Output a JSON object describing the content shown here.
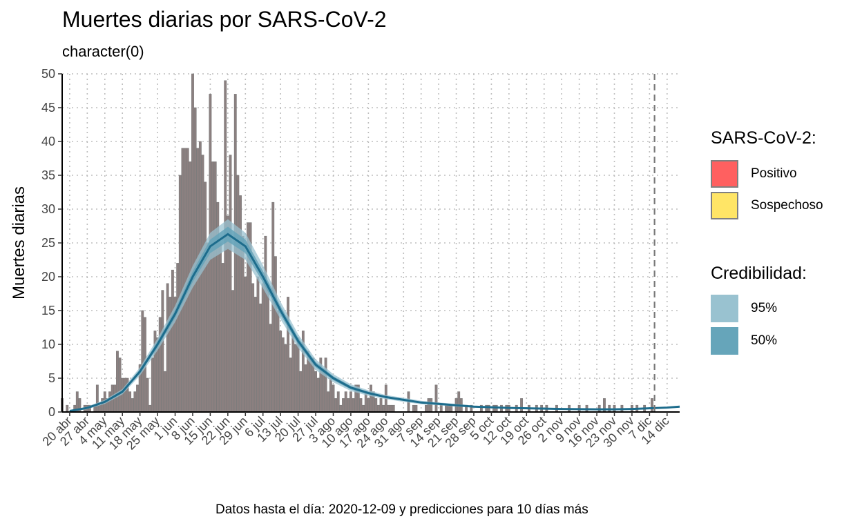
{
  "title": "Muertes diarias por SARS-CoV-2",
  "subtitle": "character(0)",
  "caption": "Datos hasta el día: 2020-12-09 y predicciones para 10 días más",
  "legend": {
    "status_title": "SARS-CoV-2:",
    "status_items": [
      {
        "label": "Positivo",
        "color": "#FF6060"
      },
      {
        "label": "Sospechoso",
        "color": "#FFE566"
      }
    ],
    "cred_title": "Credibilidad:",
    "cred_items": [
      {
        "label": "95%",
        "color": "#99C2D0"
      },
      {
        "label": "50%",
        "color": "#66A5BA"
      }
    ]
  },
  "chart_data": {
    "type": "bar",
    "title": "Muertes diarias por SARS-CoV-2",
    "subtitle": "character(0)",
    "ylabel": "Muertes diarias",
    "xlabel": "",
    "ylim": [
      0,
      50
    ],
    "xlim": [
      "2020-04-17",
      "2020-12-19"
    ],
    "grid": true,
    "legend_position": "right",
    "bar_color": "#8C8080",
    "model_line_color": "#1D6C8C",
    "yticks": [
      0,
      5,
      10,
      15,
      20,
      25,
      30,
      35,
      40,
      45,
      50
    ],
    "xticks": [
      {
        "date": "2020-04-20",
        "label": "20 abr"
      },
      {
        "date": "2020-04-27",
        "label": "27 abr"
      },
      {
        "date": "2020-05-04",
        "label": "4 may"
      },
      {
        "date": "2020-05-11",
        "label": "11 may"
      },
      {
        "date": "2020-05-18",
        "label": "18 may"
      },
      {
        "date": "2020-05-25",
        "label": "25 may"
      },
      {
        "date": "2020-06-01",
        "label": "1 jun"
      },
      {
        "date": "2020-06-08",
        "label": "8 jun"
      },
      {
        "date": "2020-06-15",
        "label": "15 jun"
      },
      {
        "date": "2020-06-22",
        "label": "22 jun"
      },
      {
        "date": "2020-06-29",
        "label": "29 jun"
      },
      {
        "date": "2020-07-06",
        "label": "6 jul"
      },
      {
        "date": "2020-07-13",
        "label": "13 jul"
      },
      {
        "date": "2020-07-20",
        "label": "20 jul"
      },
      {
        "date": "2020-07-27",
        "label": "27 jul"
      },
      {
        "date": "2020-08-03",
        "label": "3 ago"
      },
      {
        "date": "2020-08-10",
        "label": "10 ago"
      },
      {
        "date": "2020-08-17",
        "label": "17 ago"
      },
      {
        "date": "2020-08-24",
        "label": "24 ago"
      },
      {
        "date": "2020-08-31",
        "label": "31 ago"
      },
      {
        "date": "2020-09-07",
        "label": "7 sep"
      },
      {
        "date": "2020-09-14",
        "label": "14 sep"
      },
      {
        "date": "2020-09-21",
        "label": "21 sep"
      },
      {
        "date": "2020-09-28",
        "label": "28 sep"
      },
      {
        "date": "2020-10-05",
        "label": "5 oct"
      },
      {
        "date": "2020-10-12",
        "label": "12 oct"
      },
      {
        "date": "2020-10-19",
        "label": "19 oct"
      },
      {
        "date": "2020-10-26",
        "label": "26 oct"
      },
      {
        "date": "2020-11-02",
        "label": "2 nov"
      },
      {
        "date": "2020-11-09",
        "label": "9 nov"
      },
      {
        "date": "2020-11-16",
        "label": "16 nov"
      },
      {
        "date": "2020-11-23",
        "label": "23 nov"
      },
      {
        "date": "2020-11-30",
        "label": "30 nov"
      },
      {
        "date": "2020-12-07",
        "label": "7 dic"
      },
      {
        "date": "2020-12-14",
        "label": "14 dic"
      }
    ],
    "cutoff_date": "2020-12-09",
    "daily_deaths": [
      [
        "2020-04-17",
        2
      ],
      [
        "2020-04-19",
        1
      ],
      [
        "2020-04-22",
        1
      ],
      [
        "2020-04-23",
        3
      ],
      [
        "2020-04-24",
        2
      ],
      [
        "2020-04-26",
        1
      ],
      [
        "2020-04-27",
        1
      ],
      [
        "2020-04-28",
        1
      ],
      [
        "2020-04-30",
        1
      ],
      [
        "2020-05-01",
        4
      ],
      [
        "2020-05-02",
        1
      ],
      [
        "2020-05-03",
        2
      ],
      [
        "2020-05-04",
        3
      ],
      [
        "2020-05-05",
        2
      ],
      [
        "2020-05-06",
        3
      ],
      [
        "2020-05-07",
        4
      ],
      [
        "2020-05-08",
        4
      ],
      [
        "2020-05-09",
        9
      ],
      [
        "2020-05-10",
        8
      ],
      [
        "2020-05-11",
        5
      ],
      [
        "2020-05-12",
        5
      ],
      [
        "2020-05-13",
        5
      ],
      [
        "2020-05-14",
        3
      ],
      [
        "2020-05-15",
        2
      ],
      [
        "2020-05-16",
        3
      ],
      [
        "2020-05-17",
        4
      ],
      [
        "2020-05-18",
        7
      ],
      [
        "2020-05-19",
        15
      ],
      [
        "2020-05-20",
        14
      ],
      [
        "2020-05-21",
        5
      ],
      [
        "2020-05-22",
        1
      ],
      [
        "2020-05-23",
        8
      ],
      [
        "2020-05-24",
        12
      ],
      [
        "2020-05-25",
        11
      ],
      [
        "2020-05-26",
        14
      ],
      [
        "2020-05-27",
        18
      ],
      [
        "2020-05-28",
        6
      ],
      [
        "2020-05-29",
        19
      ],
      [
        "2020-05-30",
        17
      ],
      [
        "2020-05-31",
        21
      ],
      [
        "2020-06-01",
        17
      ],
      [
        "2020-06-02",
        22
      ],
      [
        "2020-06-03",
        35
      ],
      [
        "2020-06-04",
        39
      ],
      [
        "2020-06-05",
        39
      ],
      [
        "2020-06-06",
        39
      ],
      [
        "2020-06-07",
        37
      ],
      [
        "2020-06-08",
        50
      ],
      [
        "2020-06-09",
        45
      ],
      [
        "2020-06-10",
        39
      ],
      [
        "2020-06-11",
        40
      ],
      [
        "2020-06-12",
        38
      ],
      [
        "2020-06-13",
        34
      ],
      [
        "2020-06-14",
        25
      ],
      [
        "2020-06-15",
        47
      ],
      [
        "2020-06-16",
        37
      ],
      [
        "2020-06-17",
        37
      ],
      [
        "2020-06-18",
        31
      ],
      [
        "2020-06-19",
        25
      ],
      [
        "2020-06-20",
        22
      ],
      [
        "2020-06-21",
        49
      ],
      [
        "2020-06-22",
        29
      ],
      [
        "2020-06-23",
        38
      ],
      [
        "2020-06-24",
        18
      ],
      [
        "2020-06-25",
        47
      ],
      [
        "2020-06-26",
        35
      ],
      [
        "2020-06-27",
        32
      ],
      [
        "2020-06-28",
        26
      ],
      [
        "2020-06-29",
        20
      ],
      [
        "2020-06-30",
        28
      ],
      [
        "2020-07-01",
        28
      ],
      [
        "2020-07-02",
        19
      ],
      [
        "2020-07-03",
        17
      ],
      [
        "2020-07-04",
        20
      ],
      [
        "2020-07-05",
        16
      ],
      [
        "2020-07-06",
        19
      ],
      [
        "2020-07-07",
        26
      ],
      [
        "2020-07-08",
        19
      ],
      [
        "2020-07-09",
        13
      ],
      [
        "2020-07-10",
        31
      ],
      [
        "2020-07-11",
        23
      ],
      [
        "2020-07-12",
        15
      ],
      [
        "2020-07-13",
        12
      ],
      [
        "2020-07-14",
        11
      ],
      [
        "2020-07-15",
        10
      ],
      [
        "2020-07-16",
        17
      ],
      [
        "2020-07-17",
        8
      ],
      [
        "2020-07-18",
        12
      ],
      [
        "2020-07-19",
        10
      ],
      [
        "2020-07-20",
        11
      ],
      [
        "2020-07-21",
        6
      ],
      [
        "2020-07-22",
        12
      ],
      [
        "2020-07-23",
        7
      ],
      [
        "2020-07-24",
        9
      ],
      [
        "2020-07-25",
        8
      ],
      [
        "2020-07-26",
        8
      ],
      [
        "2020-07-27",
        6
      ],
      [
        "2020-07-28",
        5
      ],
      [
        "2020-07-29",
        8
      ],
      [
        "2020-07-30",
        6
      ],
      [
        "2020-07-31",
        8
      ],
      [
        "2020-08-01",
        3
      ],
      [
        "2020-08-02",
        5
      ],
      [
        "2020-08-03",
        4
      ],
      [
        "2020-08-04",
        2
      ],
      [
        "2020-08-05",
        3
      ],
      [
        "2020-08-06",
        1
      ],
      [
        "2020-08-07",
        2
      ],
      [
        "2020-08-08",
        3
      ],
      [
        "2020-08-09",
        2
      ],
      [
        "2020-08-10",
        3
      ],
      [
        "2020-08-11",
        2
      ],
      [
        "2020-08-12",
        4
      ],
      [
        "2020-08-13",
        4
      ],
      [
        "2020-08-14",
        2
      ],
      [
        "2020-08-15",
        1
      ],
      [
        "2020-08-16",
        3
      ],
      [
        "2020-08-17",
        2
      ],
      [
        "2020-08-18",
        4
      ],
      [
        "2020-08-19",
        3
      ],
      [
        "2020-08-20",
        2
      ],
      [
        "2020-08-21",
        1
      ],
      [
        "2020-08-22",
        2
      ],
      [
        "2020-08-23",
        1
      ],
      [
        "2020-08-24",
        4
      ],
      [
        "2020-08-25",
        1
      ],
      [
        "2020-08-26",
        1
      ],
      [
        "2020-08-27",
        1
      ],
      [
        "2020-09-02",
        3
      ],
      [
        "2020-09-04",
        1
      ],
      [
        "2020-09-05",
        1
      ],
      [
        "2020-09-09",
        1
      ],
      [
        "2020-09-10",
        2
      ],
      [
        "2020-09-11",
        2
      ],
      [
        "2020-09-13",
        4
      ],
      [
        "2020-09-15",
        1
      ],
      [
        "2020-09-17",
        1
      ],
      [
        "2020-09-18",
        1
      ],
      [
        "2020-09-19",
        1
      ],
      [
        "2020-09-21",
        2
      ],
      [
        "2020-09-22",
        3
      ],
      [
        "2020-09-23",
        2
      ],
      [
        "2020-09-25",
        1
      ],
      [
        "2020-09-27",
        1
      ],
      [
        "2020-10-01",
        1
      ],
      [
        "2020-10-03",
        1
      ],
      [
        "2020-10-04",
        1
      ],
      [
        "2020-10-06",
        1
      ],
      [
        "2020-10-07",
        1
      ],
      [
        "2020-10-09",
        1
      ],
      [
        "2020-10-11",
        1
      ],
      [
        "2020-10-12",
        1
      ],
      [
        "2020-10-15",
        1
      ],
      [
        "2020-10-17",
        2
      ],
      [
        "2020-10-20",
        1
      ],
      [
        "2020-10-23",
        1
      ],
      [
        "2020-10-25",
        1
      ],
      [
        "2020-10-27",
        1
      ],
      [
        "2020-10-31",
        1
      ],
      [
        "2020-11-05",
        1
      ],
      [
        "2020-11-09",
        1
      ],
      [
        "2020-11-12",
        1
      ],
      [
        "2020-11-17",
        1
      ],
      [
        "2020-11-19",
        2
      ],
      [
        "2020-11-21",
        1
      ],
      [
        "2020-11-23",
        1
      ],
      [
        "2020-11-26",
        1
      ],
      [
        "2020-11-30",
        1
      ],
      [
        "2020-12-02",
        1
      ],
      [
        "2020-12-05",
        1
      ],
      [
        "2020-12-08",
        2
      ]
    ],
    "model_fit": [
      [
        "2020-04-20",
        0.15
      ],
      [
        "2020-04-27",
        0.6
      ],
      [
        "2020-05-04",
        1.5
      ],
      [
        "2020-05-11",
        3.0
      ],
      [
        "2020-05-18",
        6.0
      ],
      [
        "2020-05-25",
        10.0
      ],
      [
        "2020-06-01",
        14.5
      ],
      [
        "2020-06-08",
        20.0
      ],
      [
        "2020-06-15",
        24.5
      ],
      [
        "2020-06-22",
        26.3
      ],
      [
        "2020-06-29",
        24.5
      ],
      [
        "2020-07-06",
        20.0
      ],
      [
        "2020-07-13",
        15.0
      ],
      [
        "2020-07-20",
        10.5
      ],
      [
        "2020-07-27",
        7.0
      ],
      [
        "2020-08-03",
        5.0
      ],
      [
        "2020-08-10",
        3.6
      ],
      [
        "2020-08-17",
        2.8
      ],
      [
        "2020-08-24",
        2.2
      ],
      [
        "2020-08-31",
        1.8
      ],
      [
        "2020-09-07",
        1.4
      ],
      [
        "2020-09-14",
        1.2
      ],
      [
        "2020-09-21",
        1.0
      ],
      [
        "2020-09-28",
        0.8
      ],
      [
        "2020-10-05",
        0.7
      ],
      [
        "2020-10-12",
        0.6
      ],
      [
        "2020-10-19",
        0.55
      ],
      [
        "2020-10-26",
        0.5
      ],
      [
        "2020-11-02",
        0.45
      ],
      [
        "2020-11-09",
        0.42
      ],
      [
        "2020-11-16",
        0.4
      ],
      [
        "2020-11-23",
        0.4
      ],
      [
        "2020-11-30",
        0.45
      ],
      [
        "2020-12-07",
        0.55
      ],
      [
        "2020-12-14",
        0.65
      ],
      [
        "2020-12-19",
        0.8
      ]
    ],
    "band_95_halfwidth": [
      0.1,
      0.2,
      0.3,
      0.4,
      0.6,
      0.9,
      1.2,
      1.6,
      2.0,
      2.2,
      2.0,
      1.7,
      1.3,
      1.0,
      0.8,
      0.6,
      0.5,
      0.4,
      0.3,
      0.3,
      0.25,
      0.2,
      0.2,
      0.15,
      0.15,
      0.12,
      0.12,
      0.1,
      0.1,
      0.1,
      0.1,
      0.1,
      0.1,
      0.1,
      0.12,
      0.15
    ],
    "band_50_halfwidth": [
      0.05,
      0.1,
      0.15,
      0.2,
      0.3,
      0.45,
      0.6,
      0.8,
      1.0,
      1.1,
      1.0,
      0.85,
      0.65,
      0.5,
      0.4,
      0.3,
      0.25,
      0.2,
      0.15,
      0.15,
      0.12,
      0.1,
      0.1,
      0.08,
      0.08,
      0.06,
      0.06,
      0.05,
      0.05,
      0.05,
      0.05,
      0.05,
      0.05,
      0.05,
      0.06,
      0.08
    ]
  }
}
